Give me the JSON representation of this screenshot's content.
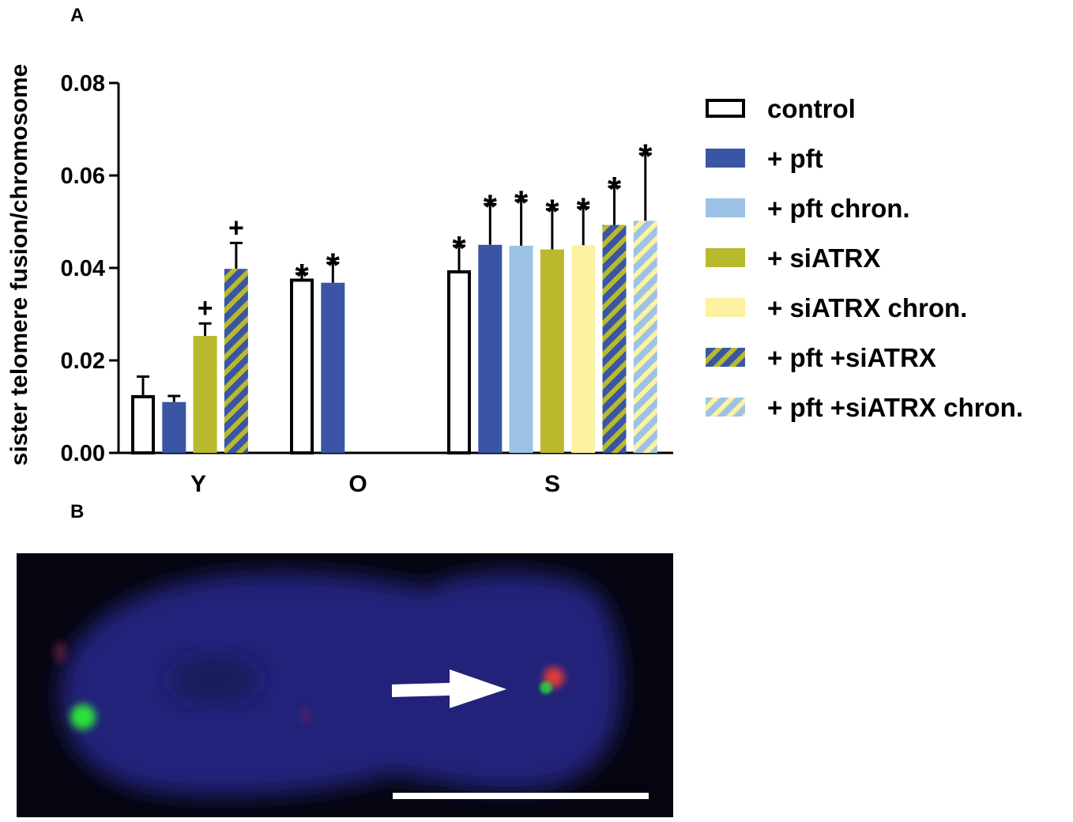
{
  "panel_labels": {
    "a": "A",
    "b": "B"
  },
  "chart_data": {
    "type": "bar",
    "title": "",
    "xlabel": "",
    "ylabel": "sister telomere fusion/chromosome",
    "ylim": [
      0,
      0.08
    ],
    "yticks": [
      "0.00",
      "0.02",
      "0.04",
      "0.06",
      "0.08"
    ],
    "ytick_values": [
      0,
      0.02,
      0.04,
      0.06,
      0.08
    ],
    "grid": false,
    "legend_position": "right",
    "groups": [
      {
        "label": "Y",
        "bars": [
          {
            "series": "control",
            "value": 0.0125,
            "error": 0.004,
            "mark": ""
          },
          {
            "series": "+ pft",
            "value": 0.011,
            "error": 0.0013,
            "mark": ""
          },
          {
            "series": "+ siATRX",
            "value": 0.0253,
            "error": 0.0027,
            "mark": "+"
          },
          {
            "series": "+ pft +siATRX",
            "value": 0.0398,
            "error": 0.0056,
            "mark": "+"
          }
        ]
      },
      {
        "label": "O",
        "bars": [
          {
            "series": "control",
            "value": 0.0377,
            "error": 0.0011,
            "mark": "*"
          },
          {
            "series": "+ pft",
            "value": 0.0368,
            "error": 0.0043,
            "mark": "*"
          }
        ]
      },
      {
        "label": "S",
        "bars": [
          {
            "series": "control",
            "value": 0.0395,
            "error": 0.0053,
            "mark": "*"
          },
          {
            "series": "+ pft",
            "value": 0.045,
            "error": 0.0088,
            "mark": "*"
          },
          {
            "series": "+ pft chron.",
            "value": 0.0448,
            "error": 0.0098,
            "mark": "*"
          },
          {
            "series": "+ siATRX",
            "value": 0.044,
            "error": 0.0087,
            "mark": "*"
          },
          {
            "series": "+ siATRX chron.",
            "value": 0.0449,
            "error": 0.0082,
            "mark": "*"
          },
          {
            "series": "+ pft +siATRX",
            "value": 0.0493,
            "error": 0.0083,
            "mark": "*"
          },
          {
            "series": "+ pft +siATRX chron.",
            "value": 0.0502,
            "error": 0.0145,
            "mark": "*"
          }
        ]
      }
    ],
    "legend": [
      {
        "name": "control",
        "style": "outline",
        "fill": "#ffffff",
        "stripe": ""
      },
      {
        "name": "+ pft",
        "style": "solid",
        "fill": "#3a55a4",
        "stripe": ""
      },
      {
        "name": "+ pft chron.",
        "style": "solid",
        "fill": "#9cc3e6",
        "stripe": ""
      },
      {
        "name": "+ siATRX",
        "style": "solid",
        "fill": "#b8b92d",
        "stripe": ""
      },
      {
        "name": "+ siATRX chron.",
        "style": "solid",
        "fill": "#fdf1a2",
        "stripe": ""
      },
      {
        "name": "+ pft +siATRX",
        "style": "striped",
        "fill": "#3a55a4",
        "stripe": "#b8b92d"
      },
      {
        "name": "+ pft +siATRX chron.",
        "style": "striped",
        "fill": "#9cc3e6",
        "stripe": "#fdf1a2"
      }
    ]
  },
  "microscopy": {
    "description_icon": "fluorescence-micrograph",
    "background_color": "#05050f",
    "nucleus_color": "#22237a",
    "green_signal_color": "#2be03a",
    "red_signal_color": "#e23a3a",
    "arrow_color": "#ffffff",
    "scale_bar_color": "#ffffff"
  }
}
